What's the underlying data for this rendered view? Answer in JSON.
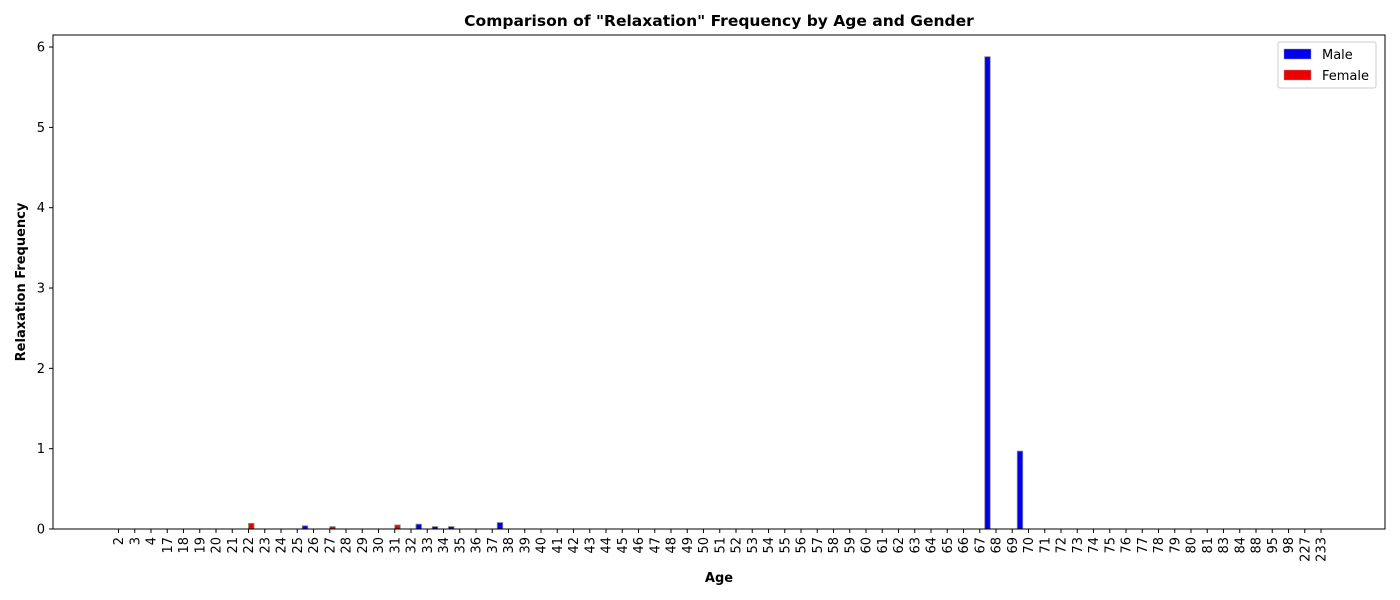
{
  "chart_data": {
    "type": "bar",
    "title": "Comparison of \"Relaxation\" Frequency by Age and Gender",
    "xlabel": "Age",
    "ylabel": "Relaxation Frequency",
    "ylim": [
      0,
      6.15
    ],
    "yticks": [
      0,
      1,
      2,
      3,
      4,
      5,
      6
    ],
    "grid": false,
    "legend_position": "top-right",
    "categories": [
      "2",
      "3",
      "4",
      "17",
      "18",
      "19",
      "20",
      "21",
      "22",
      "23",
      "24",
      "25",
      "26",
      "27",
      "28",
      "29",
      "30",
      "31",
      "32",
      "33",
      "34",
      "35",
      "36",
      "37",
      "38",
      "39",
      "40",
      "41",
      "42",
      "43",
      "44",
      "45",
      "46",
      "47",
      "48",
      "49",
      "50",
      "51",
      "52",
      "53",
      "54",
      "55",
      "56",
      "57",
      "58",
      "59",
      "60",
      "61",
      "62",
      "63",
      "64",
      "65",
      "66",
      "67",
      "68",
      "69",
      "70",
      "71",
      "72",
      "73",
      "74",
      "75",
      "76",
      "77",
      "78",
      "79",
      "80",
      "81",
      "83",
      "84",
      "88",
      "95",
      "98",
      "227",
      "233"
    ],
    "series": [
      {
        "name": "Male",
        "color": "#0000ee",
        "values": [
          0,
          0,
          0,
          0,
          0,
          0,
          0,
          0,
          0,
          0,
          0,
          0.04,
          0,
          0,
          0,
          0,
          0,
          0,
          0.06,
          0.03,
          0.03,
          0,
          0,
          0.08,
          0,
          0,
          0,
          0,
          0,
          0,
          0,
          0,
          0,
          0,
          0,
          0,
          0,
          0,
          0,
          0,
          0,
          0,
          0,
          0,
          0,
          0,
          0,
          0,
          0,
          0,
          0,
          0,
          0,
          5.88,
          0,
          0.97,
          0,
          0,
          0,
          0,
          0,
          0,
          0,
          0,
          0,
          0,
          0,
          0,
          0,
          0,
          0,
          0,
          0,
          0,
          0
        ]
      },
      {
        "name": "Female",
        "color": "#ee0000",
        "values": [
          0,
          0,
          0,
          0,
          0,
          0,
          0,
          0,
          0.07,
          0,
          0,
          0,
          0,
          0.03,
          0,
          0,
          0,
          0.05,
          0,
          0,
          0,
          0,
          0,
          0,
          0,
          0,
          0,
          0,
          0,
          0,
          0,
          0,
          0,
          0,
          0,
          0,
          0,
          0,
          0,
          0,
          0,
          0,
          0,
          0,
          0,
          0,
          0,
          0,
          0,
          0,
          0,
          0,
          0,
          0,
          0,
          0,
          0,
          0,
          0,
          0,
          0,
          0,
          0,
          0,
          0,
          0,
          0,
          0,
          0,
          0,
          0,
          0,
          0,
          0,
          0
        ]
      }
    ]
  }
}
